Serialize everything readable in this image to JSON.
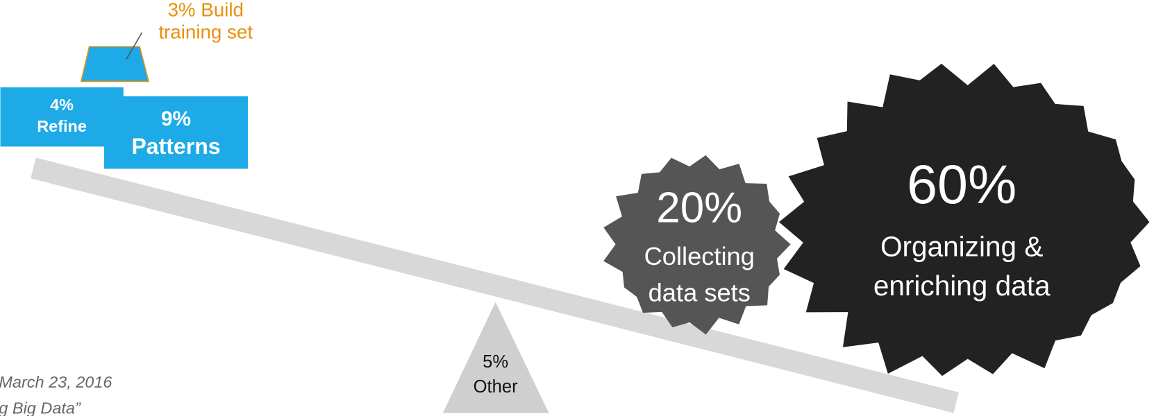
{
  "blocks": {
    "build": {
      "lines": [
        "3% Build",
        "training set"
      ]
    },
    "refine": {
      "lines": [
        "4%",
        "Refine"
      ]
    },
    "patterns": {
      "lines": [
        "9%",
        "Patterns"
      ]
    },
    "collecting": {
      "percent": "20%",
      "lines": [
        "Collecting",
        "data sets"
      ]
    },
    "organizing": {
      "percent": "60%",
      "lines": [
        "Organizing &",
        "enriching data"
      ]
    },
    "other": {
      "lines": [
        "5%",
        "Other"
      ]
    }
  },
  "source": {
    "lines": [
      "March 23, 2016",
      "g Big Data”"
    ]
  }
}
